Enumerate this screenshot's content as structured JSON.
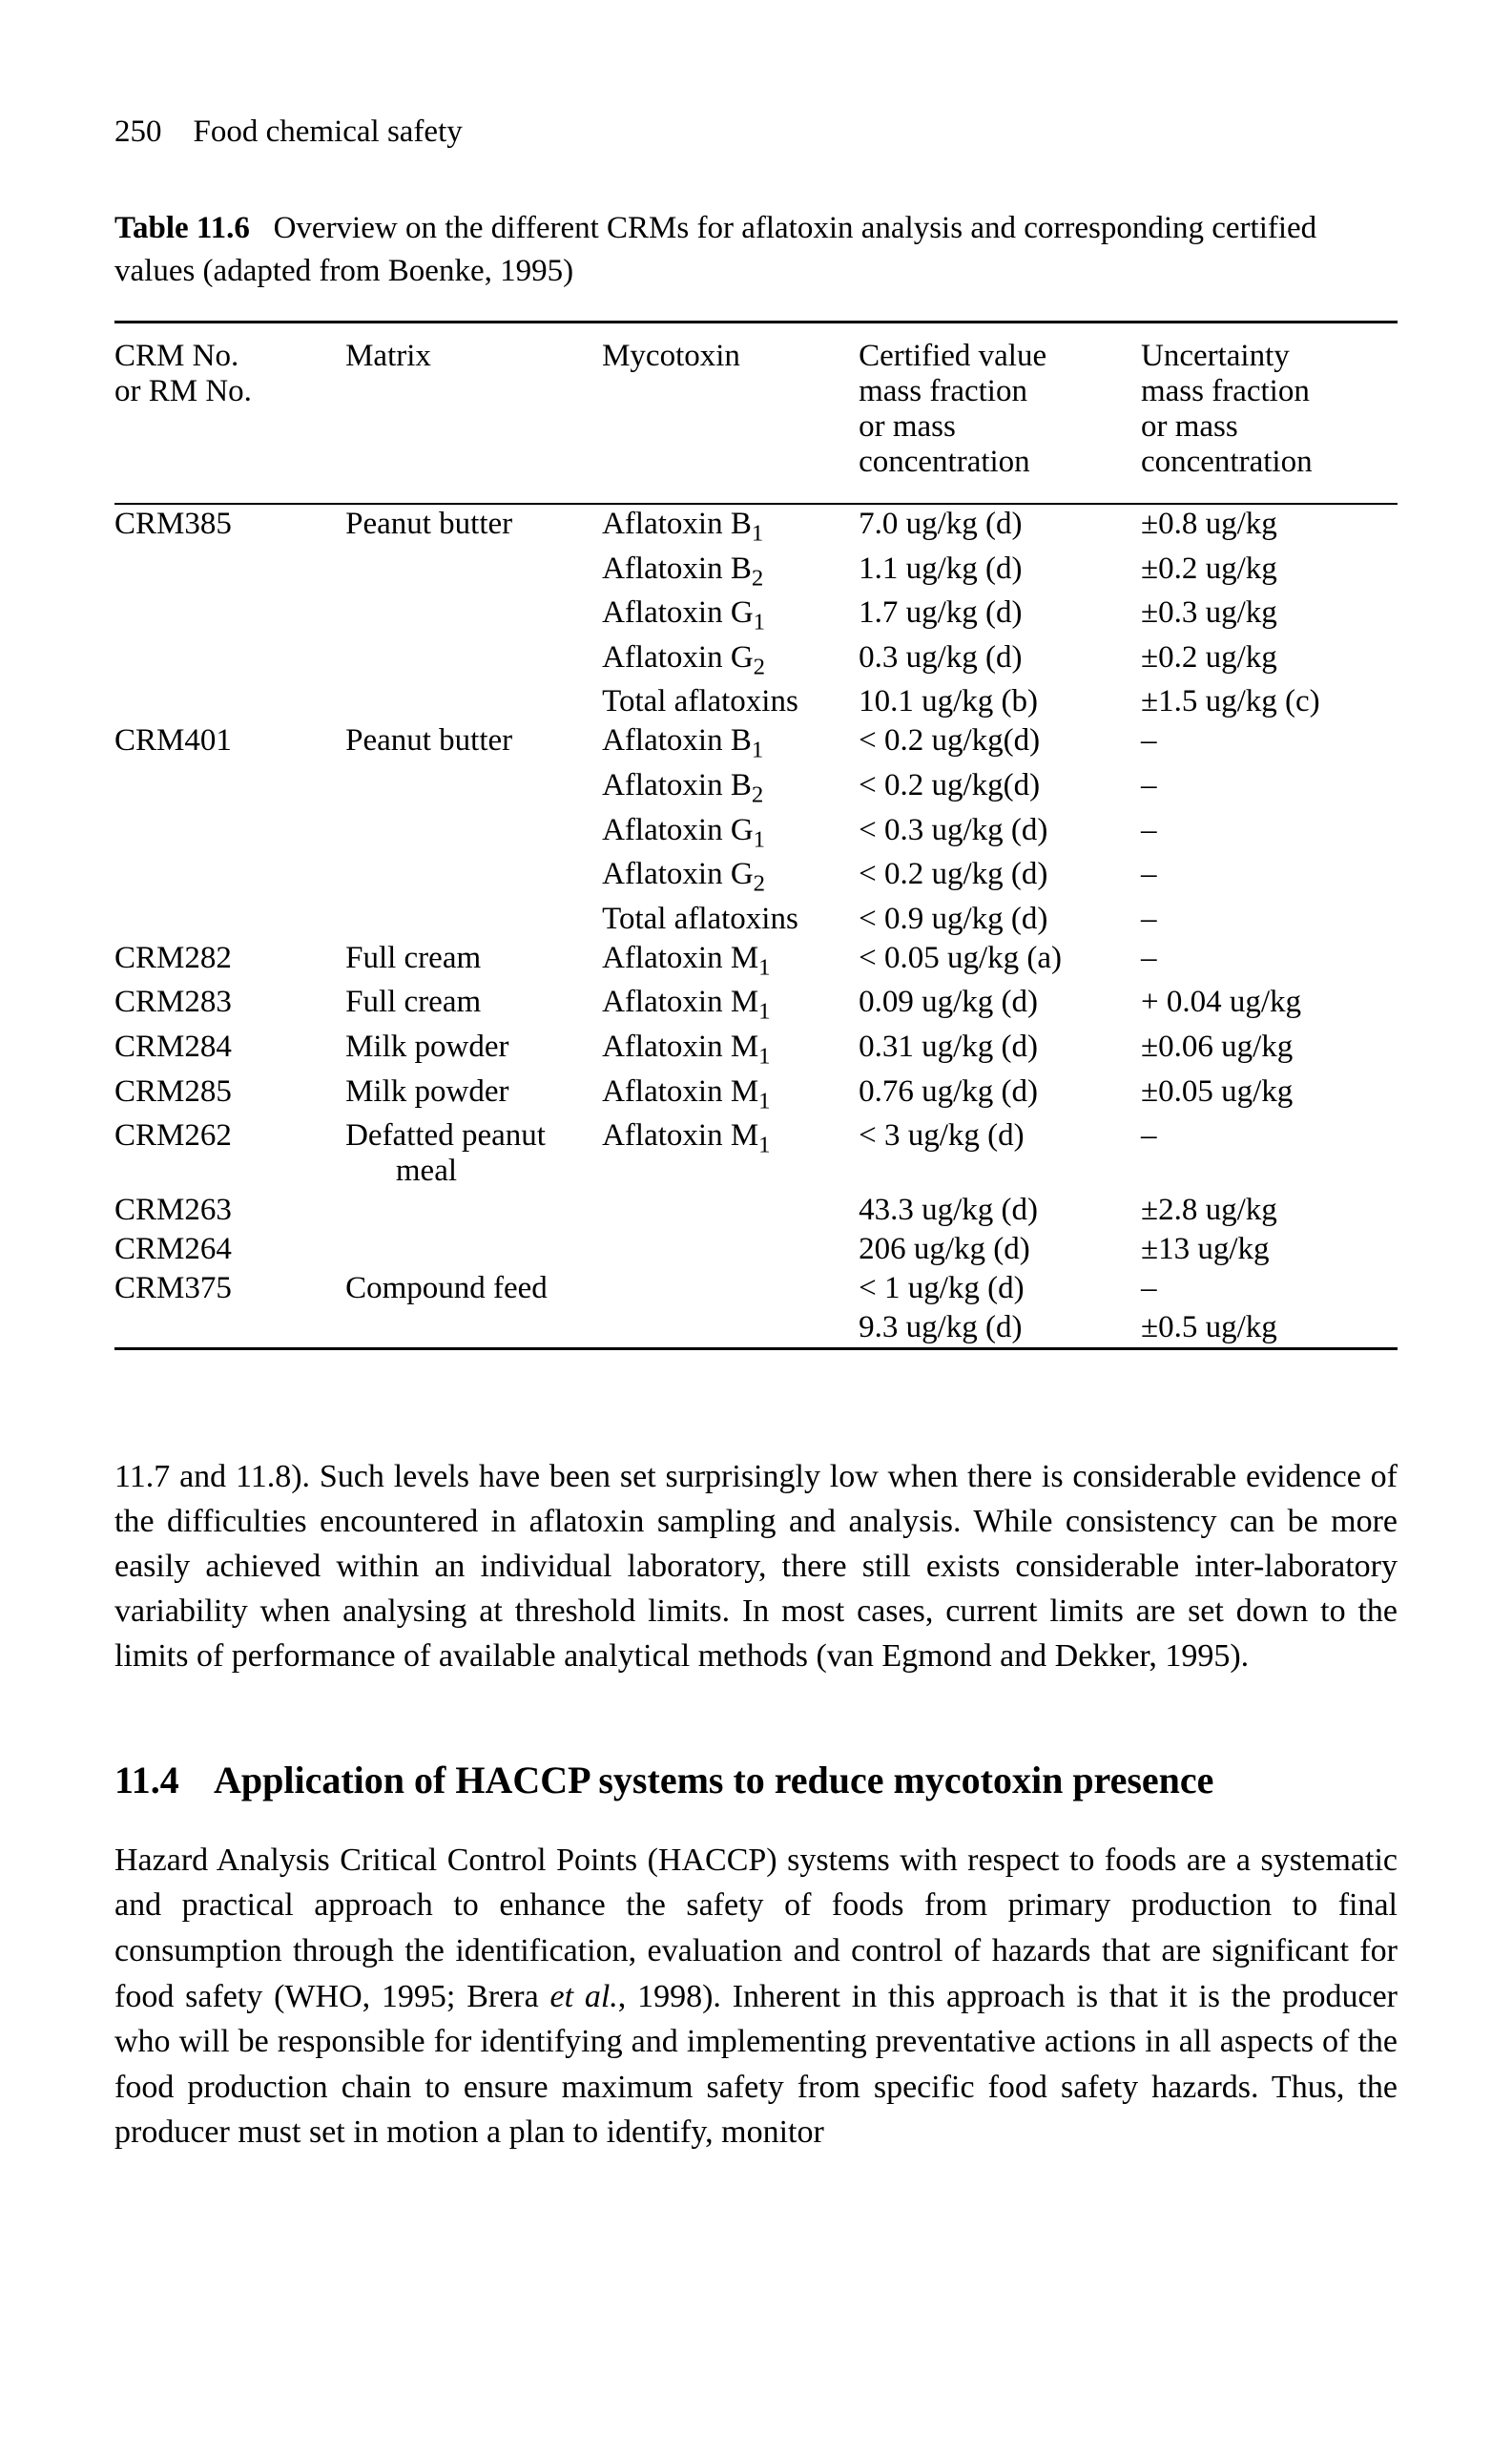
{
  "running_head": {
    "page_no": "250",
    "title": "Food chemical safety"
  },
  "table": {
    "caption_lead": "Table 11.6",
    "caption_rest": "Overview on the different CRMs for aflatoxin analysis and corresponding certified values (adapted from Boenke, 1995)",
    "columns": {
      "c1": "CRM No. or RM No.",
      "c2": "Matrix",
      "c3": "Mycotoxin",
      "c4": "Certified value mass fraction or mass concentration",
      "c5": "Uncertainty mass fraction or mass concentration"
    },
    "rows": [
      {
        "crm": "CRM385",
        "matrix": "Peanut butter",
        "tox": "Aflatoxin B",
        "sub": "1",
        "val": "7.0 ug/kg (d)",
        "unc": "±0.8 ug/kg"
      },
      {
        "crm": "",
        "matrix": "",
        "tox": "Aflatoxin B",
        "sub": "2",
        "val": "1.1 ug/kg (d)",
        "unc": "±0.2 ug/kg"
      },
      {
        "crm": "",
        "matrix": "",
        "tox": "Aflatoxin G",
        "sub": "1",
        "val": "1.7 ug/kg (d)",
        "unc": "±0.3 ug/kg"
      },
      {
        "crm": "",
        "matrix": "",
        "tox": "Aflatoxin G",
        "sub": "2",
        "val": "0.3 ug/kg (d)",
        "unc": "±0.2 ug/kg"
      },
      {
        "crm": "",
        "matrix": "",
        "tox": "Total aflatoxins",
        "sub": "",
        "val": "10.1 ug/kg (b)",
        "unc": "±1.5 ug/kg (c)"
      },
      {
        "crm": "CRM401",
        "matrix": "Peanut butter",
        "tox": "Aflatoxin B",
        "sub": "1",
        "val": "< 0.2 ug/kg(d)",
        "unc": "–"
      },
      {
        "crm": "",
        "matrix": "",
        "tox": "Aflatoxin B",
        "sub": "2",
        "val": "< 0.2 ug/kg(d)",
        "unc": "–"
      },
      {
        "crm": "",
        "matrix": "",
        "tox": "Aflatoxin G",
        "sub": "1",
        "val": "< 0.3 ug/kg (d)",
        "unc": "–"
      },
      {
        "crm": "",
        "matrix": "",
        "tox": "Aflatoxin G",
        "sub": "2",
        "val": "< 0.2 ug/kg (d)",
        "unc": "–"
      },
      {
        "crm": "",
        "matrix": "",
        "tox": "Total aflatoxins",
        "sub": "",
        "val": "< 0.9 ug/kg (d)",
        "unc": "–"
      },
      {
        "crm": "CRM282",
        "matrix": "Full cream",
        "tox": "Aflatoxin M",
        "sub": "1",
        "val": "< 0.05 ug/kg (a)",
        "unc": "–"
      },
      {
        "crm": "CRM283",
        "matrix": "Full cream",
        "tox": "Aflatoxin M",
        "sub": "1",
        "val": "0.09 ug/kg (d)",
        "unc": "+ 0.04 ug/kg"
      },
      {
        "crm": "CRM284",
        "matrix": "Milk powder",
        "tox": "Aflatoxin M",
        "sub": "1",
        "val": "0.31 ug/kg (d)",
        "unc": "±0.06 ug/kg"
      },
      {
        "crm": "CRM285",
        "matrix": "Milk powder",
        "tox": "Aflatoxin M",
        "sub": "1",
        "val": "0.76 ug/kg (d)",
        "unc": "±0.05 ug/kg"
      },
      {
        "crm": "CRM262",
        "matrix": "Defatted peanut",
        "matrix2": "meal",
        "tox": "Aflatoxin M",
        "sub": "1",
        "val": "< 3 ug/kg (d)",
        "unc": "–"
      },
      {
        "crm": "CRM263",
        "matrix": "",
        "tox": "",
        "sub": "",
        "val": "43.3 ug/kg (d)",
        "unc": "±2.8 ug/kg"
      },
      {
        "crm": "CRM264",
        "matrix": "",
        "tox": "",
        "sub": "",
        "val": "206 ug/kg (d)",
        "unc": "±13 ug/kg"
      },
      {
        "crm": "CRM375",
        "matrix": "Compound feed",
        "tox": "",
        "sub": "",
        "val": "< 1 ug/kg (d)",
        "unc": "–"
      },
      {
        "crm": "",
        "matrix": "",
        "tox": "",
        "sub": "",
        "val": "9.3 ug/kg (d)",
        "unc": "±0.5 ug/kg"
      }
    ]
  },
  "para1": "11.7 and 11.8). Such levels have been set surprisingly low when there is considerable evidence of the difficulties encountered in aflatoxin sampling and analysis. While consistency can be more easily achieved within an individual laboratory, there still exists considerable inter-laboratory variability when analysing at threshold limits. In most cases, current limits are set down to the limits of performance of available analytical methods (van Egmond and Dekker, 1995).",
  "section": {
    "num": "11.4",
    "title": "Application of HACCP systems to reduce mycotoxin presence"
  },
  "para2_a": "Hazard Analysis Critical Control Points (HACCP) systems with respect to foods are a systematic and practical approach to enhance the safety of foods from primary production to final consumption through the identification, evaluation and control of hazards that are significant for food safety (WHO, 1995; Brera ",
  "para2_em": "et al.",
  "para2_b": ", 1998). Inherent in this approach is that it is the producer who will be responsible for identifying and implementing preventative actions in all aspects of the food production chain to ensure maximum safety from specific food safety hazards. Thus, the producer must set in motion a plan to identify, monitor"
}
